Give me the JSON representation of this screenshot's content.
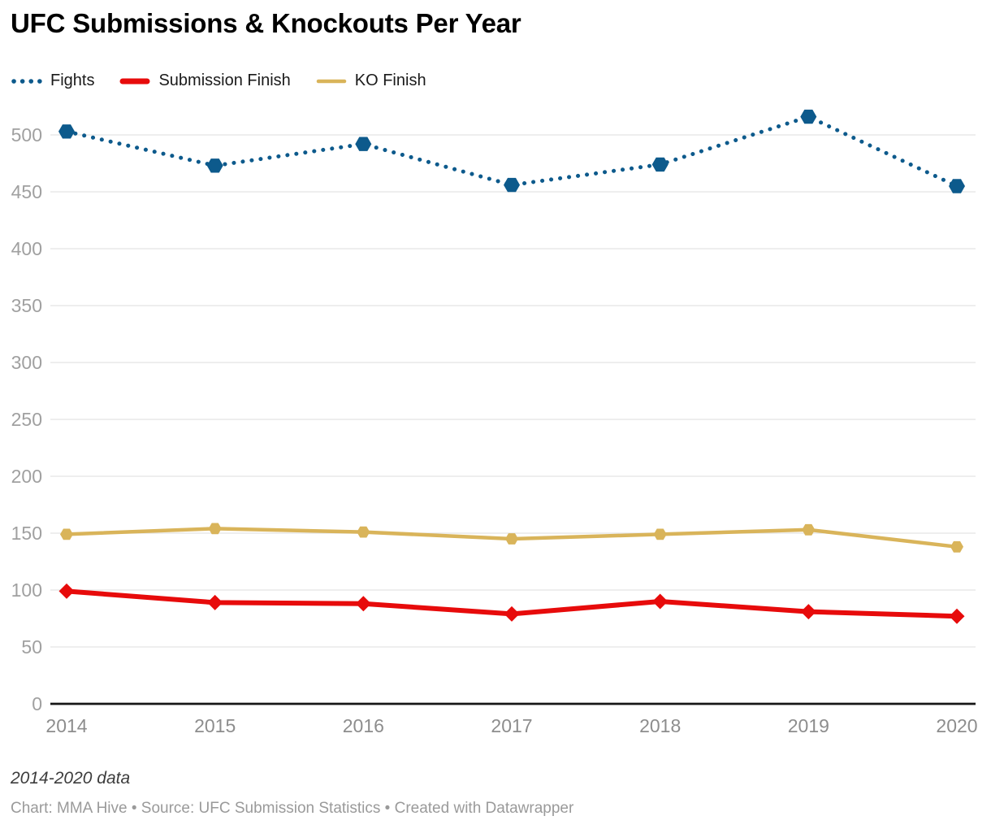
{
  "chart_data": {
    "type": "line",
    "title": "UFC Submissions & Knockouts Per Year",
    "categories": [
      "2014",
      "2015",
      "2016",
      "2017",
      "2018",
      "2019",
      "2020"
    ],
    "series": [
      {
        "name": "Fights",
        "color": "#0d5a8c",
        "line_style": "dotted",
        "line_width": 5,
        "marker": "hexagon",
        "marker_radius": 10,
        "values": [
          503,
          473,
          492,
          456,
          474,
          516,
          455
        ]
      },
      {
        "name": "Submission Finish",
        "color": "#e70b0b",
        "line_style": "solid",
        "line_width": 6,
        "marker": "diamond",
        "marker_radius": 9.5,
        "values": [
          99,
          89,
          88,
          79,
          90,
          81,
          77
        ]
      },
      {
        "name": "KO Finish",
        "color": "#d9b45a",
        "line_style": "solid",
        "line_width": 4.5,
        "marker": "hexagon",
        "marker_radius": 8,
        "values": [
          149,
          154,
          151,
          145,
          149,
          153,
          138
        ]
      }
    ],
    "xlabel": "",
    "ylabel": "",
    "ylim": [
      0,
      500
    ],
    "yticks": [
      0,
      50,
      100,
      150,
      200,
      250,
      300,
      350,
      400,
      450,
      500
    ],
    "grid": true,
    "legend_position": "top-left",
    "axis_colors": {
      "gridline": "#e4e4e4",
      "zero_line": "#161616",
      "y_tick_label": "#a0a0a0",
      "x_tick_label": "#8d8d8d"
    }
  },
  "footer": {
    "note": "2014-2020 data",
    "credit": "Chart: MMA Hive • Source: UFC Submission Statistics • Created with Datawrapper"
  }
}
